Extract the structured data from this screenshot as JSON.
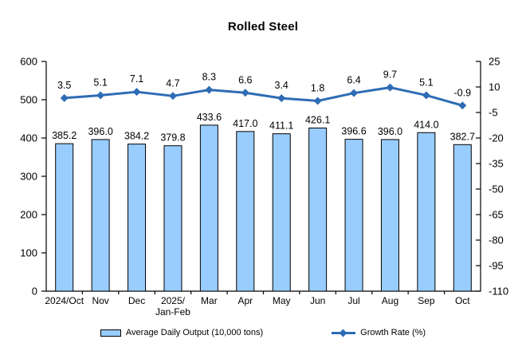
{
  "title": "Rolled Steel",
  "colors": {
    "bar_fill": "#99CCFF",
    "bar_border": "#000000",
    "line": "#2E6CB5",
    "axis": "#000000",
    "text": "#000000",
    "background": "#FFFFFF"
  },
  "chart_data": {
    "type": "bar",
    "title": "Rolled Steel",
    "categories": [
      "2024/Oct",
      "Nov",
      "Dec",
      "2025/\nJan-Feb",
      "Mar",
      "Apr",
      "May",
      "Jun",
      "Jul",
      "Aug",
      "Sep",
      "Oct"
    ],
    "series": [
      {
        "name": "Average Daily Output (10,000 tons)",
        "type": "bar",
        "axis": "left",
        "values": [
          385.2,
          396.0,
          384.2,
          379.8,
          433.6,
          417.0,
          411.1,
          426.1,
          396.6,
          396.0,
          414.0,
          382.7
        ]
      },
      {
        "name": "Growth Rate (%)",
        "type": "line",
        "axis": "right",
        "values": [
          3.5,
          5.1,
          7.1,
          4.7,
          8.3,
          6.6,
          3.4,
          1.8,
          6.4,
          9.7,
          5.1,
          -0.9
        ]
      }
    ],
    "left_axis": {
      "min": 0,
      "max": 600,
      "step": 100
    },
    "right_axis": {
      "min": -110,
      "max": 25,
      "step": 15
    },
    "grid": false,
    "legend_position": "bottom",
    "data_labels": true,
    "label_decimals": 1
  },
  "legend": {
    "bar_label": "Average Daily Output (10,000 tons)",
    "line_label": "Growth Rate (%)"
  }
}
